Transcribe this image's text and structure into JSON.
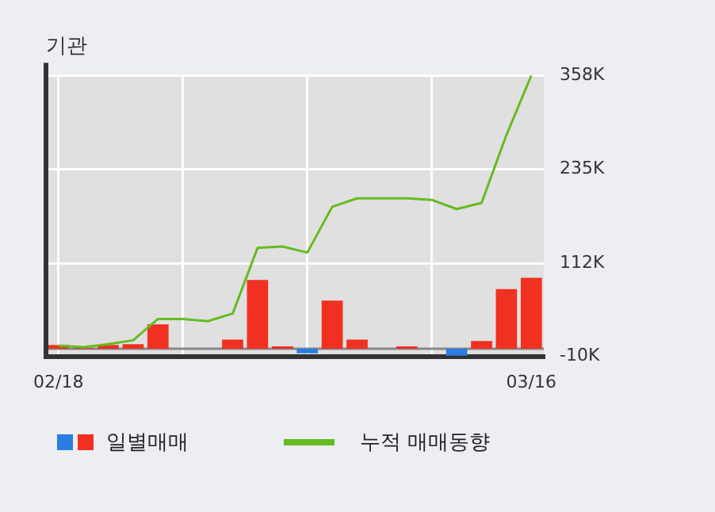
{
  "chart_data": {
    "type": "bar",
    "title": "기관",
    "categories": [
      "02/18",
      null,
      null,
      null,
      null,
      null,
      null,
      null,
      null,
      null,
      null,
      null,
      null,
      null,
      null,
      null,
      null,
      null,
      null,
      "03/16"
    ],
    "series": [
      {
        "name": "일별매매",
        "colors": [
          "#f03020",
          "#f03020",
          "#f03020",
          "#f03020",
          "#f03020",
          "#f03020",
          "#f03020",
          "#f03020",
          "#f03020",
          "#f03020",
          "#2a7de1",
          "#f03020",
          "#f03020",
          "#f03020",
          "#f03020",
          "#f03020",
          "#2a7de1",
          "#f03020",
          "#f03020",
          "#f03020"
        ],
        "values": [
          5,
          1,
          5,
          6,
          32,
          0,
          0,
          12,
          90,
          3,
          -6,
          63,
          12,
          0,
          3,
          0,
          -9,
          10,
          78,
          93
        ]
      },
      {
        "name": "누적 매매동향",
        "type": "line",
        "color": "#66bb22",
        "values": [
          4,
          2,
          6,
          11,
          39,
          39,
          36,
          46,
          132,
          134,
          126,
          186,
          197,
          197,
          197,
          195,
          183,
          191,
          280,
          358
        ]
      }
    ],
    "ylim": [
      -10,
      358
    ],
    "yticks": [
      {
        "value": -10,
        "label": "-10K"
      },
      {
        "value": 112,
        "label": "112K"
      },
      {
        "value": 235,
        "label": "235K"
      },
      {
        "value": 358,
        "label": "358K"
      }
    ],
    "grid": true,
    "legend": "bottom"
  }
}
